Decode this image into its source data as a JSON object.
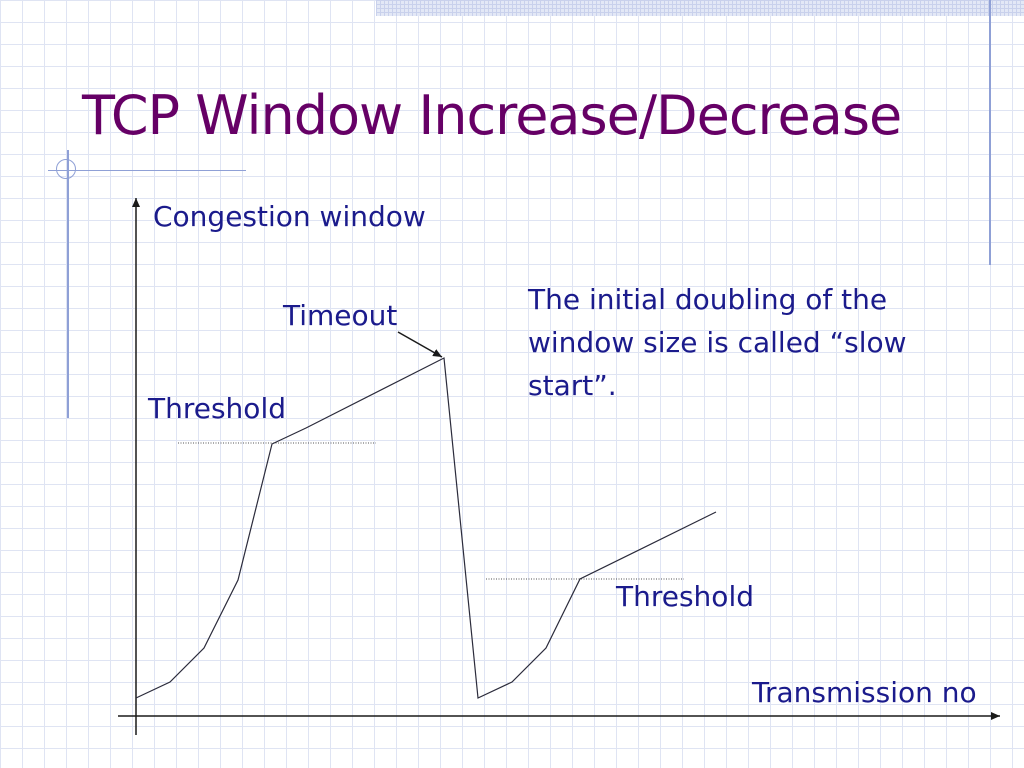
{
  "slide": {
    "title": "TCP Window Increase/Decrease"
  },
  "diagram": {
    "y_axis_label": "Congestion window",
    "x_axis_label": "Transmission no",
    "timeout_label": "Timeout",
    "threshold_label_1": "Threshold",
    "threshold_label_2": "Threshold",
    "note": "The initial doubling of the window size is called “slow start”."
  },
  "colors": {
    "title": "#660066",
    "text": "#1b1b8c",
    "decor": "#8fa0d6"
  }
}
